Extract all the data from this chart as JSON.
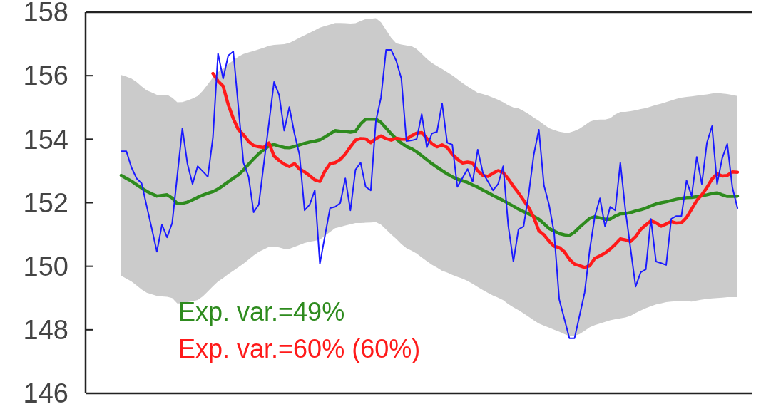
{
  "chart_data": {
    "type": "line",
    "categories": [
      null,
      null,
      null,
      null,
      null,
      null,
      null,
      null,
      null,
      null,
      null,
      null,
      null,
      null,
      null,
      null,
      null,
      null,
      null,
      null,
      null,
      null,
      null,
      null,
      null,
      null,
      null,
      null,
      null,
      null,
      null,
      null,
      null,
      null,
      null,
      null,
      null,
      null,
      null,
      null,
      null,
      null,
      null,
      null,
      null,
      null,
      null,
      null,
      null,
      null,
      null,
      null,
      null,
      null,
      null,
      null,
      null,
      null,
      null,
      null,
      null,
      null,
      null,
      null,
      null,
      null,
      null,
      null,
      null,
      null,
      null,
      null,
      null,
      null,
      null,
      null,
      null,
      null,
      null,
      null,
      null,
      null,
      null,
      null,
      null,
      null,
      null,
      null,
      null,
      null,
      null,
      null,
      null,
      null,
      null,
      null,
      null,
      null,
      null,
      null,
      null,
      null,
      null,
      null,
      null,
      null,
      null,
      null,
      null,
      null,
      null,
      null,
      null,
      null,
      null,
      null,
      null,
      null,
      null,
      null,
      null,
      null
    ],
    "ylim": [
      146,
      158
    ],
    "yticks": [
      146,
      148,
      150,
      152,
      154,
      156,
      158
    ],
    "series": [
      {
        "name": "Exp. var.=49%",
        "color": "#2e8b1e",
        "values": [
          152.86,
          152.77,
          152.68,
          152.57,
          152.46,
          152.36,
          152.28,
          152.21,
          152.23,
          152.25,
          152.15,
          151.97,
          151.98,
          152.02,
          152.09,
          152.17,
          152.24,
          152.3,
          152.35,
          152.43,
          152.54,
          152.66,
          152.77,
          152.88,
          153.03,
          153.21,
          153.38,
          153.54,
          153.67,
          153.79,
          153.83,
          153.78,
          153.74,
          153.73,
          153.77,
          153.82,
          153.87,
          153.91,
          153.94,
          153.98,
          154.07,
          154.17,
          154.27,
          154.25,
          154.24,
          154.22,
          154.25,
          154.48,
          154.63,
          154.63,
          154.63,
          154.53,
          154.35,
          154.17,
          154.01,
          153.88,
          153.77,
          153.7,
          153.6,
          153.48,
          153.35,
          153.23,
          153.12,
          153.01,
          152.91,
          152.82,
          152.74,
          152.69,
          152.64,
          152.56,
          152.49,
          152.4,
          152.32,
          152.23,
          152.15,
          152.07,
          151.98,
          151.89,
          151.8,
          151.72,
          151.65,
          151.57,
          151.48,
          151.34,
          151.19,
          151.11,
          151.03,
          150.99,
          150.97,
          151.07,
          151.23,
          151.37,
          151.51,
          151.56,
          151.52,
          151.48,
          151.48,
          151.58,
          151.65,
          151.66,
          151.69,
          151.74,
          151.78,
          151.83,
          151.9,
          151.96,
          152.0,
          152.03,
          152.07,
          152.11,
          152.14,
          152.16,
          152.17,
          152.19,
          152.22,
          152.25,
          152.29,
          152.31,
          152.25,
          152.2,
          152.2,
          152.21
        ],
        "upper": [
          156.02,
          155.97,
          155.91,
          155.8,
          155.66,
          155.54,
          155.47,
          155.4,
          155.4,
          155.4,
          155.31,
          155.16,
          155.17,
          155.22,
          155.28,
          155.36,
          155.52,
          155.73,
          155.94,
          156.11,
          156.23,
          156.36,
          156.48,
          156.6,
          156.68,
          156.73,
          156.78,
          156.83,
          156.88,
          156.94,
          156.97,
          156.98,
          156.99,
          157.03,
          157.11,
          157.19,
          157.27,
          157.35,
          157.43,
          157.51,
          157.56,
          157.61,
          157.66,
          157.66,
          157.65,
          157.64,
          157.65,
          157.72,
          157.78,
          157.79,
          157.81,
          157.68,
          157.44,
          157.19,
          157.02,
          156.98,
          156.95,
          156.93,
          156.84,
          156.69,
          156.53,
          156.4,
          156.3,
          156.21,
          156.11,
          156.01,
          155.89,
          155.77,
          155.66,
          155.56,
          155.46,
          155.42,
          155.37,
          155.31,
          155.24,
          155.16,
          155.07,
          155.0,
          154.97,
          154.89,
          154.79,
          154.68,
          154.58,
          154.46,
          154.35,
          154.29,
          154.24,
          154.21,
          154.21,
          154.26,
          154.33,
          154.44,
          154.55,
          154.61,
          154.62,
          154.62,
          154.66,
          154.78,
          154.86,
          154.86,
          154.88,
          154.91,
          154.95,
          154.98,
          155.03,
          155.08,
          155.12,
          155.17,
          155.22,
          155.27,
          155.31,
          155.33,
          155.35,
          155.37,
          155.39,
          155.41,
          155.44,
          155.46,
          155.44,
          155.42,
          155.39,
          155.36
        ],
        "lower": [
          149.7,
          149.61,
          149.52,
          149.4,
          149.27,
          149.17,
          149.12,
          149.07,
          149.05,
          149.04,
          149.0,
          148.83,
          148.83,
          148.87,
          148.9,
          148.94,
          149.05,
          149.21,
          149.37,
          149.52,
          149.63,
          149.75,
          149.86,
          149.97,
          150.08,
          150.21,
          150.34,
          150.45,
          150.53,
          150.61,
          150.62,
          150.59,
          150.55,
          150.55,
          150.61,
          150.67,
          150.73,
          150.77,
          150.8,
          150.84,
          150.96,
          151.08,
          151.2,
          151.24,
          151.28,
          151.32,
          151.36,
          151.36,
          151.37,
          151.38,
          151.39,
          151.31,
          151.16,
          151.0,
          150.86,
          150.7,
          150.57,
          150.49,
          150.4,
          150.28,
          150.16,
          150.05,
          149.96,
          149.86,
          149.8,
          149.73,
          149.67,
          149.61,
          149.54,
          149.45,
          149.35,
          149.25,
          149.16,
          149.08,
          149.01,
          148.93,
          148.81,
          148.71,
          148.62,
          148.52,
          148.41,
          148.3,
          148.2,
          148.13,
          148.07,
          148.0,
          147.94,
          147.87,
          147.8,
          147.81,
          147.87,
          147.97,
          148.08,
          148.15,
          148.2,
          148.25,
          148.3,
          148.33,
          148.36,
          148.39,
          148.44,
          148.53,
          148.61,
          148.68,
          148.74,
          148.8,
          148.83,
          148.87,
          148.89,
          148.9,
          148.91,
          148.9,
          148.89,
          148.92,
          148.95,
          148.97,
          148.99,
          149.0,
          149.01,
          149.03,
          149.03,
          149.03
        ]
      },
      {
        "name": "Exp. var.=60% (60%)",
        "color": "#ff1a1a",
        "values": [
          null,
          null,
          null,
          null,
          null,
          null,
          null,
          null,
          null,
          null,
          null,
          null,
          null,
          null,
          null,
          null,
          null,
          null,
          156.07,
          155.83,
          155.67,
          155.09,
          154.65,
          154.3,
          154.14,
          153.93,
          153.8,
          153.76,
          153.74,
          153.88,
          153.47,
          153.33,
          153.21,
          153.14,
          153.23,
          153.06,
          152.97,
          152.85,
          152.72,
          152.67,
          153.0,
          153.23,
          153.26,
          153.36,
          153.53,
          153.76,
          153.97,
          154.02,
          154.01,
          153.89,
          154.02,
          154.1,
          154.02,
          153.97,
          154.03,
          154.0,
          154.0,
          154.11,
          154.19,
          154.21,
          154.03,
          153.86,
          153.76,
          153.82,
          153.74,
          153.53,
          153.37,
          153.25,
          153.28,
          153.25,
          153.0,
          152.86,
          152.83,
          152.93,
          153.01,
          152.95,
          152.75,
          152.52,
          152.31,
          152.08,
          151.85,
          151.54,
          151.12,
          150.99,
          150.79,
          150.63,
          150.59,
          150.46,
          150.22,
          150.07,
          150.02,
          149.96,
          150.02,
          150.25,
          150.33,
          150.42,
          150.54,
          150.69,
          150.86,
          150.83,
          150.78,
          150.93,
          151.16,
          151.3,
          151.43,
          151.37,
          151.26,
          151.33,
          151.41,
          151.36,
          151.37,
          151.53,
          151.8,
          152.07,
          152.25,
          152.48,
          152.75,
          152.91,
          152.84,
          152.86,
          152.97,
          152.96
        ]
      },
      {
        "color": "#1a1aff",
        "values": [
          153.62,
          153.62,
          153.11,
          152.77,
          152.61,
          151.89,
          151.18,
          150.46,
          151.31,
          150.91,
          151.36,
          152.85,
          154.34,
          153.22,
          152.59,
          153.15,
          152.99,
          152.82,
          154.05,
          156.7,
          155.91,
          156.63,
          156.76,
          155.0,
          153.26,
          152.82,
          151.7,
          151.94,
          153.23,
          154.51,
          155.8,
          155.39,
          154.27,
          155.01,
          154.18,
          153.51,
          151.76,
          151.94,
          152.39,
          150.08,
          150.96,
          151.83,
          151.87,
          151.99,
          152.77,
          151.76,
          153.04,
          153.26,
          152.5,
          152.39,
          154.57,
          155.31,
          156.81,
          156.81,
          156.47,
          155.91,
          153.94,
          153.96,
          154.0,
          154.79,
          153.74,
          154.18,
          154.23,
          155.13,
          153.89,
          153.83,
          152.5,
          152.78,
          153.06,
          152.66,
          153.67,
          152.95,
          152.67,
          152.39,
          152.59,
          153.15,
          151.27,
          150.15,
          151.16,
          151.25,
          152.26,
          153.51,
          154.3,
          152.55,
          151.94,
          151.05,
          148.96,
          148.35,
          147.73,
          147.73,
          148.45,
          149.18,
          150.53,
          151.58,
          152.14,
          151.25,
          151.87,
          151.76,
          153.26,
          151.76,
          150.56,
          149.36,
          149.81,
          149.9,
          151.49,
          150.15,
          150.1,
          150.04,
          151.49,
          151.58,
          151.58,
          152.7,
          152.21,
          153.44,
          152.59,
          153.89,
          154.41,
          152.59,
          153.4,
          153.85,
          152.48,
          151.83
        ]
      }
    ]
  }
}
